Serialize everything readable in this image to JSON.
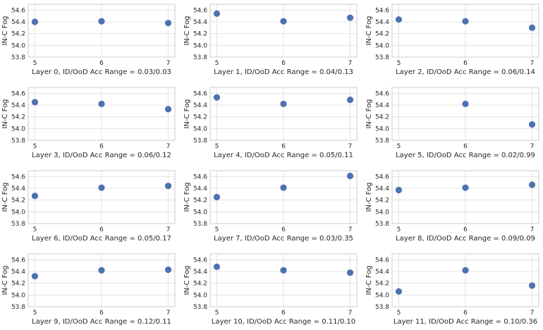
{
  "figure": {
    "point_color": "#4c72b0",
    "grid_color": "#dddddd",
    "frame_color": "#cccccc",
    "text_color": "#262626"
  },
  "chart_data": [
    {
      "type": "scatter",
      "title": "",
      "xlabel": "Layer 0, ID/OoD Acc Range = 0.03/0.03",
      "ylabel": "IN-C Fog",
      "x": [
        5,
        6,
        7
      ],
      "y": [
        54.4,
        54.41,
        54.38
      ],
      "xticks": [
        "5",
        "6",
        "7"
      ],
      "yticks": [
        "53.8",
        "54.0",
        "54.2",
        "54.4",
        "54.6"
      ],
      "ylim": [
        53.8,
        54.7
      ],
      "grid": true
    },
    {
      "type": "scatter",
      "title": "",
      "xlabel": "Layer 1, ID/OoD Acc Range = 0.04/0.13",
      "ylabel": "IN-C Fog",
      "x": [
        5,
        6,
        7
      ],
      "y": [
        54.54,
        54.41,
        54.47
      ],
      "xticks": [
        "5",
        "6",
        "7"
      ],
      "yticks": [
        "53.8",
        "54.0",
        "54.2",
        "54.4",
        "54.6"
      ],
      "ylim": [
        53.8,
        54.7
      ],
      "grid": true
    },
    {
      "type": "scatter",
      "title": "",
      "xlabel": "Layer 2, ID/OoD Acc Range = 0.06/0.14",
      "ylabel": "IN-C Fog",
      "x": [
        5,
        6,
        7
      ],
      "y": [
        54.44,
        54.41,
        54.3
      ],
      "xticks": [
        "5",
        "6",
        "7"
      ],
      "yticks": [
        "53.8",
        "54.0",
        "54.2",
        "54.4",
        "54.6"
      ],
      "ylim": [
        53.8,
        54.7
      ],
      "grid": true
    },
    {
      "type": "scatter",
      "title": "",
      "xlabel": "Layer 3, ID/OoD Acc Range = 0.06/0.12",
      "ylabel": "IN-C Fog",
      "x": [
        5,
        6,
        7
      ],
      "y": [
        54.45,
        54.42,
        54.33
      ],
      "xticks": [
        "5",
        "6",
        "7"
      ],
      "yticks": [
        "53.8",
        "54.0",
        "54.2",
        "54.4",
        "54.6"
      ],
      "ylim": [
        53.8,
        54.7
      ],
      "grid": true
    },
    {
      "type": "scatter",
      "title": "",
      "xlabel": "Layer 4, ID/OoD Acc Range = 0.05/0.11",
      "ylabel": "IN-C Fog",
      "x": [
        5,
        6,
        7
      ],
      "y": [
        54.53,
        54.42,
        54.49
      ],
      "xticks": [
        "5",
        "6",
        "7"
      ],
      "yticks": [
        "53.8",
        "54.0",
        "54.2",
        "54.4",
        "54.6"
      ],
      "ylim": [
        53.8,
        54.7
      ],
      "grid": true
    },
    {
      "type": "scatter",
      "title": "",
      "xlabel": "Layer 5, ID/OoD Acc Range = 0.02/0.99",
      "ylabel": "IN-C Fog",
      "x": [
        6,
        7
      ],
      "y": [
        54.42,
        54.07
      ],
      "xticks": [
        "5",
        "6",
        "7"
      ],
      "yticks": [
        "53.8",
        "54.0",
        "54.2",
        "54.4",
        "54.6"
      ],
      "ylim": [
        53.8,
        54.7
      ],
      "grid": true
    },
    {
      "type": "scatter",
      "title": "",
      "xlabel": "Layer 6, ID/OoD Acc Range = 0.05/0.17",
      "ylabel": "IN-C Fog",
      "x": [
        5,
        6,
        7
      ],
      "y": [
        54.27,
        54.41,
        54.44
      ],
      "xticks": [
        "5",
        "6",
        "7"
      ],
      "yticks": [
        "53.8",
        "54.0",
        "54.2",
        "54.4",
        "54.6"
      ],
      "ylim": [
        53.8,
        54.7
      ],
      "grid": true
    },
    {
      "type": "scatter",
      "title": "",
      "xlabel": "Layer 7, ID/OoD Acc Range = 0.03/0.35",
      "ylabel": "IN-C Fog",
      "x": [
        5,
        6,
        7
      ],
      "y": [
        54.25,
        54.41,
        54.61
      ],
      "xticks": [
        "5",
        "6",
        "7"
      ],
      "yticks": [
        "53.8",
        "54.0",
        "54.2",
        "54.4",
        "54.6"
      ],
      "ylim": [
        53.8,
        54.7
      ],
      "grid": true
    },
    {
      "type": "scatter",
      "title": "",
      "xlabel": "Layer 8, ID/OoD Acc Range = 0.09/0.09",
      "ylabel": "IN-C Fog",
      "x": [
        5,
        6,
        7
      ],
      "y": [
        54.37,
        54.41,
        54.46
      ],
      "xticks": [
        "5",
        "6",
        "7"
      ],
      "yticks": [
        "53.8",
        "54.0",
        "54.2",
        "54.4",
        "54.6"
      ],
      "ylim": [
        53.8,
        54.7
      ],
      "grid": true
    },
    {
      "type": "scatter",
      "title": "",
      "xlabel": "Layer 9, ID/OoD Acc Range = 0.12/0.11",
      "ylabel": "IN-C Fog",
      "x": [
        5,
        6,
        7
      ],
      "y": [
        54.32,
        54.42,
        54.43
      ],
      "xticks": [
        "5",
        "6",
        "7"
      ],
      "yticks": [
        "53.8",
        "54.0",
        "54.2",
        "54.4",
        "54.6"
      ],
      "ylim": [
        53.8,
        54.7
      ],
      "grid": true
    },
    {
      "type": "scatter",
      "title": "",
      "xlabel": "Layer 10, ID/OoD Acc Range = 0.11/0.10",
      "ylabel": "IN-C Fog",
      "x": [
        5,
        6,
        7
      ],
      "y": [
        54.48,
        54.42,
        54.38
      ],
      "xticks": [
        "5",
        "6",
        "7"
      ],
      "yticks": [
        "53.8",
        "54.0",
        "54.2",
        "54.4",
        "54.6"
      ],
      "ylim": [
        53.8,
        54.7
      ],
      "grid": true
    },
    {
      "type": "scatter",
      "title": "",
      "xlabel": "Layer 11, ID/OoD Acc Range = 0.10/0.36",
      "ylabel": "IN-C Fog",
      "x": [
        5,
        6,
        7
      ],
      "y": [
        54.06,
        54.42,
        54.16
      ],
      "xticks": [
        "5",
        "6",
        "7"
      ],
      "yticks": [
        "53.8",
        "54.0",
        "54.2",
        "54.4",
        "54.6"
      ],
      "ylim": [
        53.8,
        54.7
      ],
      "grid": true
    }
  ]
}
